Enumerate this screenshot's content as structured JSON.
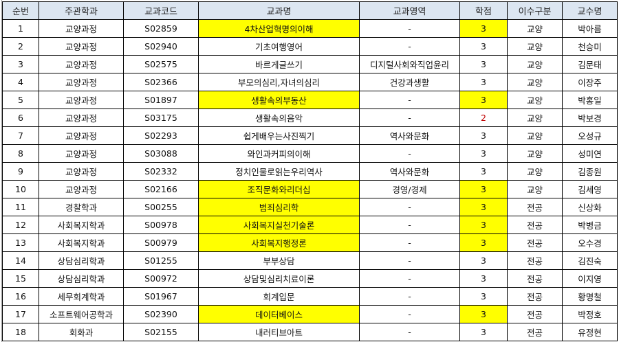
{
  "headers": [
    "순번",
    "주관학과",
    "교과코드",
    "교과명",
    "교과영역",
    "학점",
    "이수구분",
    "교수명"
  ],
  "highlight_color": "#ffff00",
  "header_color": "#dce6f1",
  "rows": [
    {
      "no": "1",
      "dept": "교양과정",
      "code": "S02859",
      "name": "4차산업혁명의이해",
      "area": "-",
      "credit": "3",
      "type": "교양",
      "prof": "박아름",
      "highlight": true
    },
    {
      "no": "2",
      "dept": "교양과정",
      "code": "S02940",
      "name": "기초여행영어",
      "area": "-",
      "credit": "3",
      "type": "교양",
      "prof": "천승미",
      "highlight": false
    },
    {
      "no": "3",
      "dept": "교양과정",
      "code": "S02575",
      "name": "바르게글쓰기",
      "area": "디지털사회와직업윤리",
      "credit": "3",
      "type": "교양",
      "prof": "김문태",
      "highlight": false
    },
    {
      "no": "4",
      "dept": "교양과정",
      "code": "S02366",
      "name": "부모의심리,자녀의심리",
      "area": "건강과생활",
      "credit": "3",
      "type": "교양",
      "prof": "이장주",
      "highlight": false
    },
    {
      "no": "5",
      "dept": "교양과정",
      "code": "S01897",
      "name": "생활속의부동산",
      "area": "-",
      "credit": "3",
      "type": "교양",
      "prof": "박홍일",
      "highlight": true
    },
    {
      "no": "6",
      "dept": "교양과정",
      "code": "S03175",
      "name": "생활속의음악",
      "area": "-",
      "credit": "2",
      "type": "교양",
      "prof": "박보경",
      "highlight": false,
      "credit_red": true
    },
    {
      "no": "7",
      "dept": "교양과정",
      "code": "S02293",
      "name": "쉽게배우는사진찍기",
      "area": "역사와문화",
      "credit": "3",
      "type": "교양",
      "prof": "오성규",
      "highlight": false
    },
    {
      "no": "8",
      "dept": "교양과정",
      "code": "S03088",
      "name": "와인과커피의이해",
      "area": "-",
      "credit": "3",
      "type": "교양",
      "prof": "성미연",
      "highlight": false
    },
    {
      "no": "9",
      "dept": "교양과정",
      "code": "S02332",
      "name": "정치인물로읽는우리역사",
      "area": "역사와문화",
      "credit": "3",
      "type": "교양",
      "prof": "김종원",
      "highlight": false
    },
    {
      "no": "10",
      "dept": "교양과정",
      "code": "S02166",
      "name": "조직문화와리더십",
      "area": "경영/경제",
      "credit": "3",
      "type": "교양",
      "prof": "김세영",
      "highlight": true
    },
    {
      "no": "11",
      "dept": "경찰학과",
      "code": "S00255",
      "name": "범죄심리학",
      "area": "-",
      "credit": "3",
      "type": "전공",
      "prof": "신상화",
      "highlight": true
    },
    {
      "no": "12",
      "dept": "사회복지학과",
      "code": "S00978",
      "name": "사회복지실천기술론",
      "area": "-",
      "credit": "3",
      "type": "전공",
      "prof": "박병금",
      "highlight": true
    },
    {
      "no": "13",
      "dept": "사회복지학과",
      "code": "S00979",
      "name": "사회복지행정론",
      "area": "-",
      "credit": "3",
      "type": "전공",
      "prof": "오수경",
      "highlight": true
    },
    {
      "no": "14",
      "dept": "상담심리학과",
      "code": "S01255",
      "name": "부부상담",
      "area": "-",
      "credit": "3",
      "type": "전공",
      "prof": "김진숙",
      "highlight": false
    },
    {
      "no": "15",
      "dept": "상담심리학과",
      "code": "S00972",
      "name": "상담및심리치료이론",
      "area": "-",
      "credit": "3",
      "type": "전공",
      "prof": "이지영",
      "highlight": false
    },
    {
      "no": "16",
      "dept": "세무회계학과",
      "code": "S01967",
      "name": "회계입문",
      "area": "-",
      "credit": "3",
      "type": "전공",
      "prof": "황명철",
      "highlight": false
    },
    {
      "no": "17",
      "dept": "소프트웨어공학과",
      "code": "S02390",
      "name": "데이터베이스",
      "area": "-",
      "credit": "3",
      "type": "전공",
      "prof": "박정호",
      "highlight": true
    },
    {
      "no": "18",
      "dept": "회화과",
      "code": "S02155",
      "name": "내러티브아트",
      "area": "-",
      "credit": "3",
      "type": "전공",
      "prof": "유정현",
      "highlight": false
    }
  ]
}
